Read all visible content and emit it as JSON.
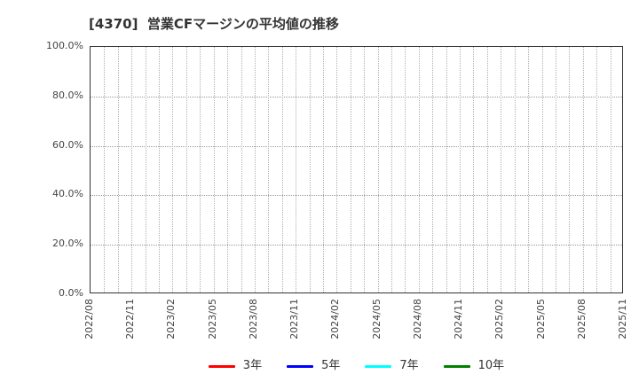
{
  "chart_data": {
    "type": "line",
    "title": "[4370]  営業CFマージンの平均値の推移",
    "xlabel": "",
    "ylabel": "",
    "ylim": [
      0,
      100
    ],
    "y_tick_values": [
      0,
      20,
      40,
      60,
      80,
      100
    ],
    "y_tick_labels": [
      "0.0%",
      "20.0%",
      "40.0%",
      "60.0%",
      "80.0%",
      "100.0%"
    ],
    "x_tick_labels": [
      "2022/08",
      "2022/11",
      "2023/02",
      "2023/05",
      "2023/08",
      "2023/11",
      "2024/02",
      "2024/05",
      "2024/08",
      "2024/11",
      "2025/02",
      "2025/05",
      "2025/08",
      "2025/11"
    ],
    "months_between_ticks": 3,
    "grid": true,
    "grid_style": "dotted",
    "legend_position": "bottom",
    "series": [
      {
        "name": "3年",
        "color": "#ff0000",
        "values": []
      },
      {
        "name": "5年",
        "color": "#0000ff",
        "values": []
      },
      {
        "name": "7年",
        "color": "#00ffff",
        "values": []
      },
      {
        "name": "10年",
        "color": "#008000",
        "values": []
      }
    ]
  }
}
